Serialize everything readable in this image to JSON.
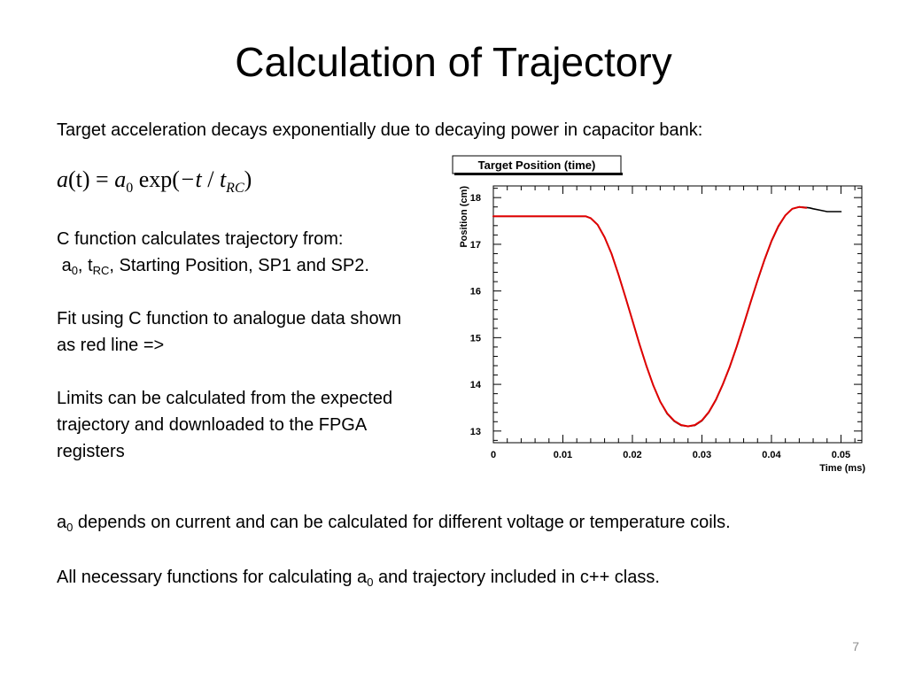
{
  "title": "Calculation of Trajectory",
  "intro": "Target acceleration decays exponentially due to decaying power in capacitor bank:",
  "equation": {
    "lhs_var": "a",
    "lhs_arg": "(t)",
    "equals": "=",
    "coef_var": "a",
    "coef_sub": "0",
    "func": "exp(",
    "minus_t": "−t",
    "slash": "/",
    "den_var": "t",
    "den_sub": "RC",
    "close": ")"
  },
  "left_column": {
    "p1_line1": "C function calculates trajectory from:",
    "p1_line2_a": "a",
    "p1_line2_a_sub": "0",
    "p1_line2_sep1": ", t",
    "p1_line2_t_sub": "RC",
    "p1_line2_rest": ", Starting Position, SP1 and SP2.",
    "p2": "Fit using C function to analogue data shown as red line =>",
    "p3": "Limits can be calculated from the expected trajectory and downloaded to the FPGA registers"
  },
  "bottom": {
    "line1_a": "a",
    "line1_sub": "0",
    "line1_rest": " depends on current and can be calculated for different voltage or temperature coils.",
    "line2_start": "All necessary functions for calculating a",
    "line2_sub": "0",
    "line2_rest": " and trajectory included in c++ class."
  },
  "page_number": "7",
  "chart_data": {
    "type": "line",
    "title": "Target Position (time)",
    "xlabel": "Time (ms)",
    "ylabel": "Position (cm)",
    "xlim": [
      0,
      0.053
    ],
    "ylim": [
      12.75,
      18.25
    ],
    "x_ticks": [
      0,
      0.01,
      0.02,
      0.03,
      0.04,
      0.05
    ],
    "x_tick_labels": [
      "0",
      "0.01",
      "0.02",
      "0.03",
      "0.04",
      "0.05"
    ],
    "y_ticks": [
      13,
      14,
      15,
      16,
      17,
      18
    ],
    "y_tick_labels": [
      "13",
      "14",
      "15",
      "16",
      "17",
      "18"
    ],
    "grid": false,
    "series": [
      {
        "color": "#000000",
        "x": [
          0,
          0.002,
          0.004,
          0.006,
          0.008,
          0.01,
          0.012,
          0.0133,
          0.014,
          0.015,
          0.016,
          0.017,
          0.018,
          0.019,
          0.02,
          0.021,
          0.022,
          0.023,
          0.024,
          0.025,
          0.026,
          0.027,
          0.028,
          0.029,
          0.03,
          0.031,
          0.032,
          0.033,
          0.034,
          0.035,
          0.036,
          0.037,
          0.038,
          0.039,
          0.04,
          0.041,
          0.042,
          0.043,
          0.044,
          0.045,
          0.0455,
          0.046,
          0.047,
          0.048,
          0.049,
          0.05
        ],
        "y": [
          17.6,
          17.6,
          17.6,
          17.6,
          17.6,
          17.6,
          17.6,
          17.6,
          17.56,
          17.42,
          17.15,
          16.8,
          16.35,
          15.87,
          15.37,
          14.87,
          14.4,
          13.98,
          13.63,
          13.37,
          13.21,
          13.12,
          13.1,
          13.12,
          13.22,
          13.4,
          13.66,
          13.99,
          14.37,
          14.8,
          15.27,
          15.75,
          16.22,
          16.66,
          17.06,
          17.38,
          17.62,
          17.76,
          17.8,
          17.79,
          17.78,
          17.76,
          17.73,
          17.7,
          17.7,
          17.7
        ]
      },
      {
        "color": "#e00000",
        "x": [
          0,
          0.002,
          0.004,
          0.006,
          0.008,
          0.01,
          0.012,
          0.0133,
          0.014,
          0.015,
          0.016,
          0.017,
          0.018,
          0.019,
          0.02,
          0.021,
          0.022,
          0.023,
          0.024,
          0.025,
          0.026,
          0.027,
          0.028,
          0.029,
          0.03,
          0.031,
          0.032,
          0.033,
          0.034,
          0.035,
          0.036,
          0.037,
          0.038,
          0.039,
          0.04,
          0.041,
          0.042,
          0.043,
          0.044,
          0.045
        ],
        "y": [
          17.6,
          17.6,
          17.6,
          17.6,
          17.6,
          17.6,
          17.6,
          17.6,
          17.56,
          17.42,
          17.15,
          16.8,
          16.35,
          15.87,
          15.37,
          14.87,
          14.4,
          13.98,
          13.63,
          13.38,
          13.22,
          13.13,
          13.1,
          13.13,
          13.23,
          13.41,
          13.67,
          14.0,
          14.38,
          14.81,
          15.28,
          15.76,
          16.23,
          16.67,
          17.07,
          17.39,
          17.62,
          17.76,
          17.8,
          17.78
        ]
      }
    ]
  }
}
